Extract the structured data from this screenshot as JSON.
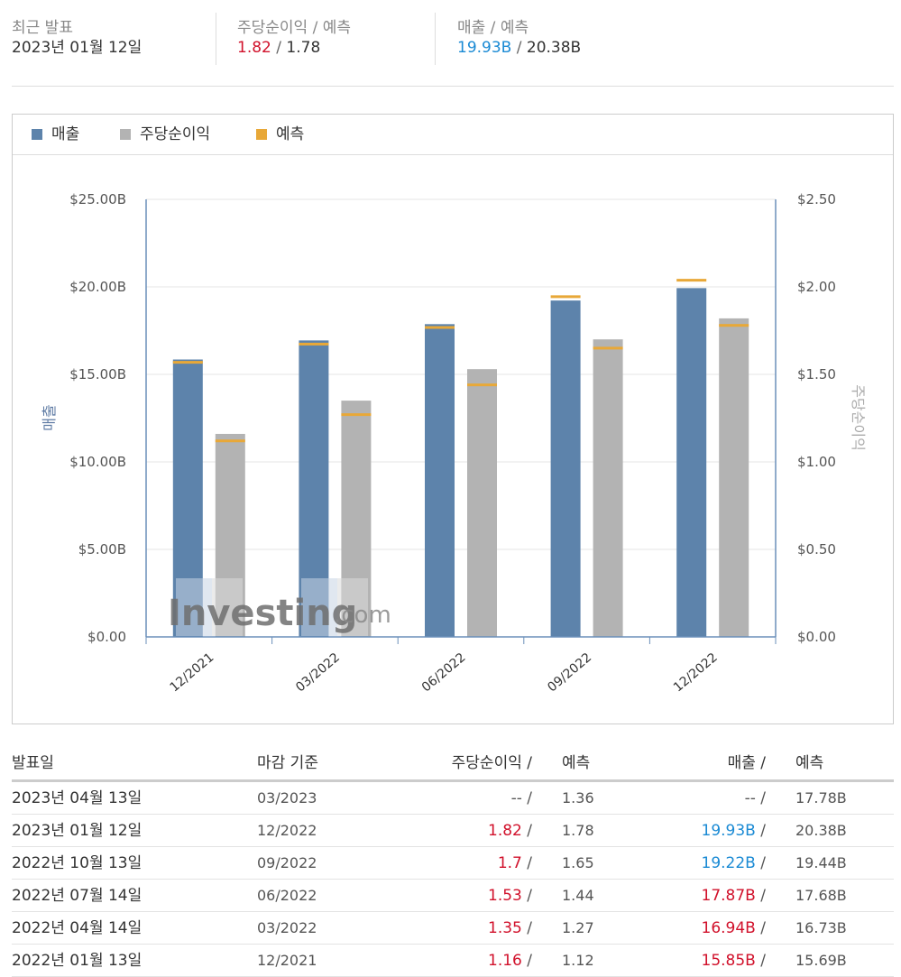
{
  "summary": {
    "latest_label": "최근 발표",
    "latest_date": "2023년 01월 12일",
    "eps_label": "주당순이익 / 예측",
    "eps_actual": "1.82",
    "eps_forecast": "1.78",
    "rev_label": "매출 / 예측",
    "rev_actual": "19.93B",
    "rev_forecast": "20.38B",
    "separator": "/"
  },
  "legend": {
    "revenue": "매출",
    "eps": "주당순이익",
    "forecast": "예측"
  },
  "colors": {
    "revenue": "#5d83ab",
    "eps": "#b3b3b3",
    "forecast": "#e8a838",
    "eps_beat": "#d1112b",
    "rev_positive": "#1a8ad4",
    "axis": "#6b8fba"
  },
  "chart_data": {
    "type": "bar",
    "categories": [
      "12/2021",
      "03/2022",
      "06/2022",
      "09/2022",
      "12/2022"
    ],
    "series": [
      {
        "name": "매출",
        "axis": "left",
        "values": [
          15.85,
          16.94,
          17.87,
          19.22,
          19.93
        ],
        "forecast": [
          15.69,
          16.73,
          17.68,
          19.44,
          20.38
        ]
      },
      {
        "name": "주당순이익",
        "axis": "right",
        "values": [
          1.16,
          1.35,
          1.53,
          1.7,
          1.82
        ],
        "forecast": [
          1.12,
          1.27,
          1.44,
          1.65,
          1.78
        ]
      }
    ],
    "ylabel_left": "매출",
    "ylabel_right": "주당순이익",
    "ylim_left": [
      0,
      25
    ],
    "ylim_right": [
      0,
      2.5
    ],
    "left_ticks": [
      "$0.00",
      "$5.00B",
      "$10.00B",
      "$15.00B",
      "$20.00B",
      "$25.00B"
    ],
    "right_ticks": [
      "$0.00",
      "$0.50",
      "$1.00",
      "$1.50",
      "$2.00",
      "$2.50"
    ],
    "grid": true,
    "legend_position": "top-left",
    "watermark": "Investing.com"
  },
  "history": {
    "headers": {
      "date": "발표일",
      "period": "마감 기준",
      "eps": "주당순이익",
      "eps_forecast": "예측",
      "revenue": "매출",
      "revenue_forecast": "예측"
    },
    "rows": [
      {
        "date": "2023년 04월 13일",
        "period": "03/2023",
        "eps": "--",
        "eps_forecast": "1.36",
        "revenue": "--",
        "revenue_forecast": "17.78B",
        "eps_color": "#555555",
        "rev_color": "#555555"
      },
      {
        "date": "2023년 01월 12일",
        "period": "12/2022",
        "eps": "1.82",
        "eps_forecast": "1.78",
        "revenue": "19.93B",
        "revenue_forecast": "20.38B",
        "eps_color": "#d1112b",
        "rev_color": "#1a8ad4"
      },
      {
        "date": "2022년 10월 13일",
        "period": "09/2022",
        "eps": "1.7",
        "eps_forecast": "1.65",
        "revenue": "19.22B",
        "revenue_forecast": "19.44B",
        "eps_color": "#d1112b",
        "rev_color": "#1a8ad4"
      },
      {
        "date": "2022년 07월 14일",
        "period": "06/2022",
        "eps": "1.53",
        "eps_forecast": "1.44",
        "revenue": "17.87B",
        "revenue_forecast": "17.68B",
        "eps_color": "#d1112b",
        "rev_color": "#d1112b"
      },
      {
        "date": "2022년 04월 14일",
        "period": "03/2022",
        "eps": "1.35",
        "eps_forecast": "1.27",
        "revenue": "16.94B",
        "revenue_forecast": "16.73B",
        "eps_color": "#d1112b",
        "rev_color": "#d1112b"
      },
      {
        "date": "2022년 01월 13일",
        "period": "12/2021",
        "eps": "1.16",
        "eps_forecast": "1.12",
        "revenue": "15.85B",
        "revenue_forecast": "15.69B",
        "eps_color": "#d1112b",
        "rev_color": "#d1112b"
      }
    ]
  }
}
